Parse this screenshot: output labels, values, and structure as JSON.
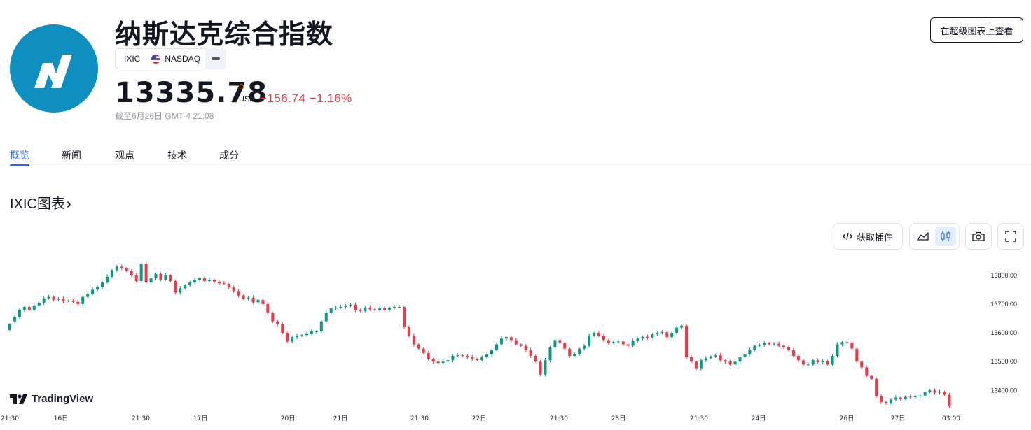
{
  "header": {
    "title": "纳斯达克综合指数",
    "symbol": "IXIC",
    "separator": "·",
    "exchange": "NASDAQ",
    "price": "13335.78",
    "price_flag": "D",
    "currency": "USD",
    "change": "−156.74 −1.16%",
    "as_of": "截至6月26日 GMT-4 21:08",
    "super_chart_label": "在超级图表上查看"
  },
  "tabs": [
    {
      "label": "概览",
      "active": true
    },
    {
      "label": "新闻",
      "active": false
    },
    {
      "label": "观点",
      "active": false
    },
    {
      "label": "技术",
      "active": false
    },
    {
      "label": "成分",
      "active": false
    }
  ],
  "chart_section": {
    "title": "IXIC图表",
    "chevron": "›",
    "embed_label": "获取插件",
    "tradingview_label": "TradingView"
  },
  "colors": {
    "up": "#089981",
    "down": "#f23645",
    "accent": "#2962ff",
    "logo_bg": "#0f8fc0"
  },
  "icons": [
    "code-icon",
    "area-chart-icon",
    "candlestick-icon",
    "camera-icon",
    "fullscreen-icon",
    "tradingview-logo-icon"
  ],
  "chart_data": {
    "type": "candlestick",
    "y_ticks": [
      "13800.00",
      "13700.00",
      "13600.00",
      "13500.00",
      "13400.00"
    ],
    "y_range": [
      13340,
      13870
    ],
    "x_ticks": [
      "21:30",
      "16日",
      "21:30",
      "17日",
      "20日",
      "21日",
      "21:30",
      "22日",
      "21:30",
      "23日",
      "21:30",
      "24日",
      "26日",
      "27日",
      "03:00"
    ],
    "x_tick_pos": [
      14,
      87,
      201,
      286,
      411,
      486,
      599,
      684,
      798,
      883,
      998,
      1083,
      1209,
      1282,
      1358
    ],
    "session_starts": [
      1,
      202,
      600,
      998
    ],
    "closes": [
      13630,
      13655,
      13680,
      13690,
      13680,
      13695,
      13705,
      13720,
      13725,
      13715,
      13718,
      13710,
      13712,
      13708,
      13700,
      13725,
      13735,
      13750,
      13760,
      13775,
      13795,
      13818,
      13830,
      13825,
      13815,
      13800,
      13780,
      13840,
      13775,
      13790,
      13805,
      13785,
      13800,
      13780,
      13740,
      13755,
      13765,
      13775,
      13785,
      13790,
      13780,
      13785,
      13778,
      13772,
      13770,
      13758,
      13745,
      13730,
      13718,
      13722,
      13706,
      13715,
      13700,
      13670,
      13640,
      13630,
      13600,
      13570,
      13585,
      13590,
      13592,
      13598,
      13605,
      13605,
      13640,
      13670,
      13685,
      13688,
      13690,
      13695,
      13698,
      13680,
      13676,
      13688,
      13682,
      13678,
      13685,
      13680,
      13688,
      13690,
      13690,
      13620,
      13590,
      13560,
      13545,
      13530,
      13510,
      13500,
      13495,
      13500,
      13505,
      13520,
      13522,
      13520,
      13515,
      13510,
      13505,
      13515,
      13525,
      13540,
      13560,
      13580,
      13585,
      13575,
      13560,
      13555,
      13540,
      13520,
      13500,
      13455,
      13505,
      13550,
      13575,
      13565,
      13545,
      13520,
      13525,
      13545,
      13555,
      13590,
      13600,
      13590,
      13575,
      13565,
      13568,
      13570,
      13560,
      13555,
      13572,
      13580,
      13586,
      13584,
      13595,
      13600,
      13602,
      13585,
      13600,
      13618,
      13625,
      13515,
      13500,
      13475,
      13505,
      13512,
      13518,
      13522,
      13505,
      13500,
      13490,
      13500,
      13515,
      13525,
      13540,
      13555,
      13558,
      13565,
      13560,
      13562,
      13555,
      13550,
      13540,
      13520,
      13505,
      13490,
      13490,
      13505,
      13498,
      13502,
      13490,
      13520,
      13560,
      13568,
      13565,
      13545,
      13500,
      13480,
      13450,
      13440,
      13380,
      13360,
      13355,
      13368,
      13375,
      13370,
      13378,
      13376,
      13380,
      13382,
      13395,
      13400,
      13392,
      13395,
      13385,
      13345
    ]
  }
}
